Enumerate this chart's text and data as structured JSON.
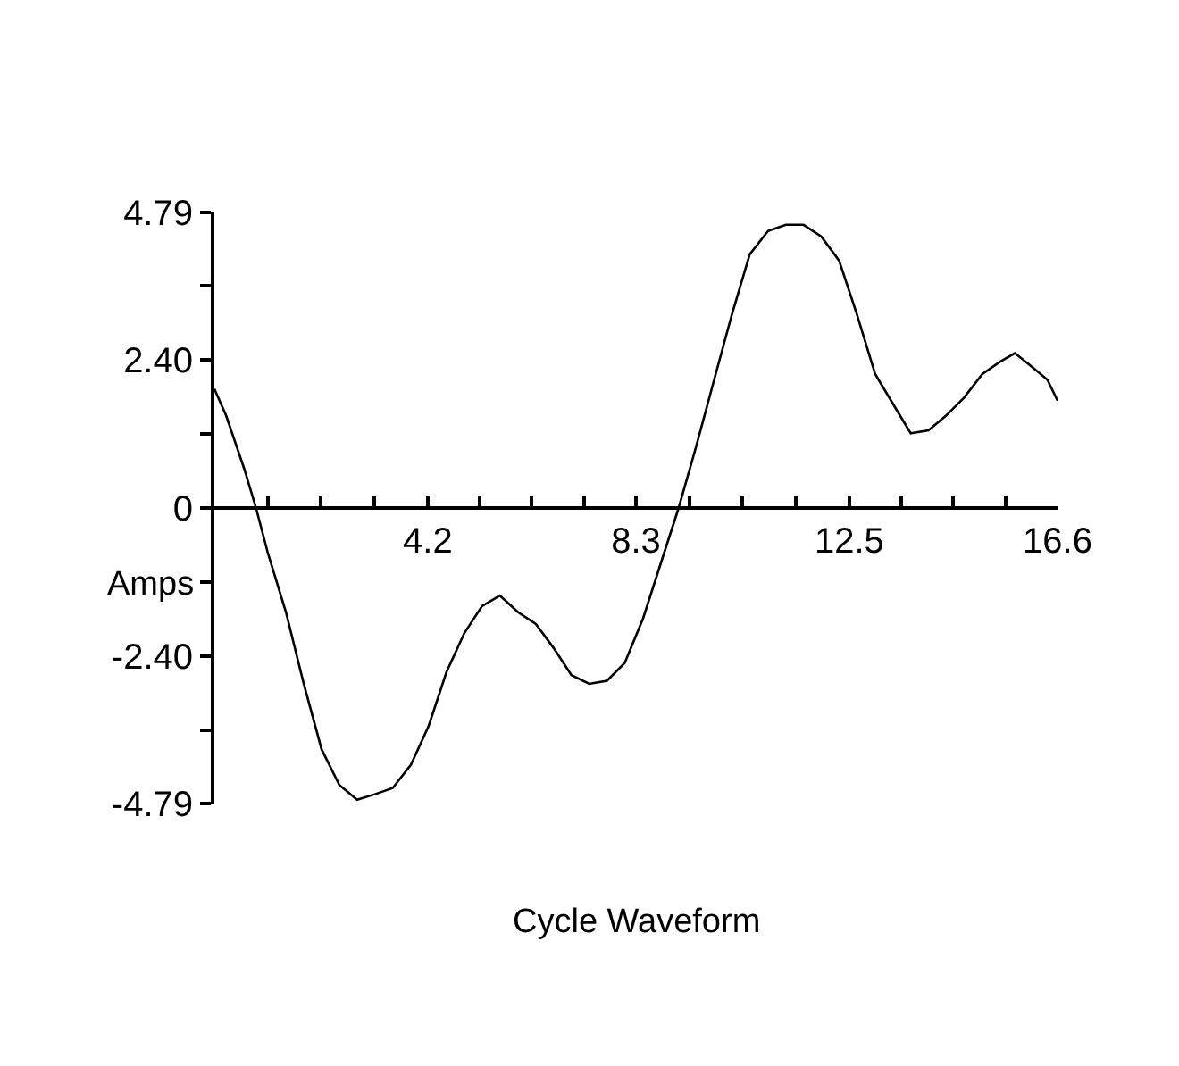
{
  "chart_data": {
    "type": "line",
    "title": "Cycle Waveform",
    "ylabel": "Amps",
    "x": [
      0,
      0.23,
      0.59,
      0.82,
      1.05,
      1.41,
      1.76,
      2.11,
      2.46,
      2.81,
      3.16,
      3.51,
      3.87,
      4.22,
      4.57,
      4.92,
      5.27,
      5.62,
      5.98,
      6.33,
      6.68,
      7.03,
      7.38,
      7.73,
      8.08,
      8.44,
      9.14,
      9.49,
      9.84,
      10.19,
      10.54,
      10.9,
      11.25,
      11.6,
      11.95,
      12.3,
      12.65,
      13.01,
      13.36,
      13.71,
      14.06,
      14.41,
      14.76,
      15.12,
      15.47,
      15.76,
      16.05,
      16.4,
      16.6
    ],
    "series": [
      {
        "color": "#000000",
        "values": [
          1.93,
          1.5,
          0.63,
          0,
          -0.72,
          -1.69,
          -2.85,
          -3.91,
          -4.49,
          -4.73,
          -4.64,
          -4.54,
          -4.16,
          -3.53,
          -2.66,
          -2.03,
          -1.59,
          -1.42,
          -1.69,
          -1.88,
          -2.27,
          -2.71,
          -2.85,
          -2.8,
          -2.51,
          -1.79,
          0,
          1.01,
          2.08,
          3.14,
          4.11,
          4.49,
          4.59,
          4.59,
          4.4,
          4.01,
          3.14,
          2.17,
          1.69,
          1.21,
          1.26,
          1.5,
          1.79,
          2.17,
          2.37,
          2.51,
          2.32,
          2.08,
          1.74
        ]
      }
    ],
    "xlim": [
      0,
      16.6
    ],
    "ylim": [
      -4.79,
      4.79
    ],
    "xticks": [
      {
        "value": 1.05,
        "label": null
      },
      {
        "value": 2.1,
        "label": null
      },
      {
        "value": 3.15,
        "label": null
      },
      4.2,
      {
        "value": 5.23,
        "label": null
      },
      {
        "value": 6.25,
        "label": null
      },
      {
        "value": 7.28,
        "label": null
      },
      8.3,
      {
        "value": 9.35,
        "label": null
      },
      {
        "value": 10.4,
        "label": null
      },
      {
        "value": 11.45,
        "label": null
      },
      12.5,
      {
        "value": 13.53,
        "label": null
      },
      {
        "value": 14.55,
        "label": null
      },
      {
        "value": 15.58,
        "label": null
      },
      16.6
    ],
    "yticks": [
      -4.79,
      {
        "value": -3.6,
        "label": null
      },
      {
        "value": -2.4,
        "label": "-2.40"
      },
      {
        "value": -1.2,
        "label": null
      },
      0,
      {
        "value": 1.2,
        "label": null
      },
      {
        "value": 2.4,
        "label": "2.40"
      },
      {
        "value": 3.6,
        "label": null
      },
      4.79
    ],
    "marker": "none",
    "line_style": "solid"
  }
}
